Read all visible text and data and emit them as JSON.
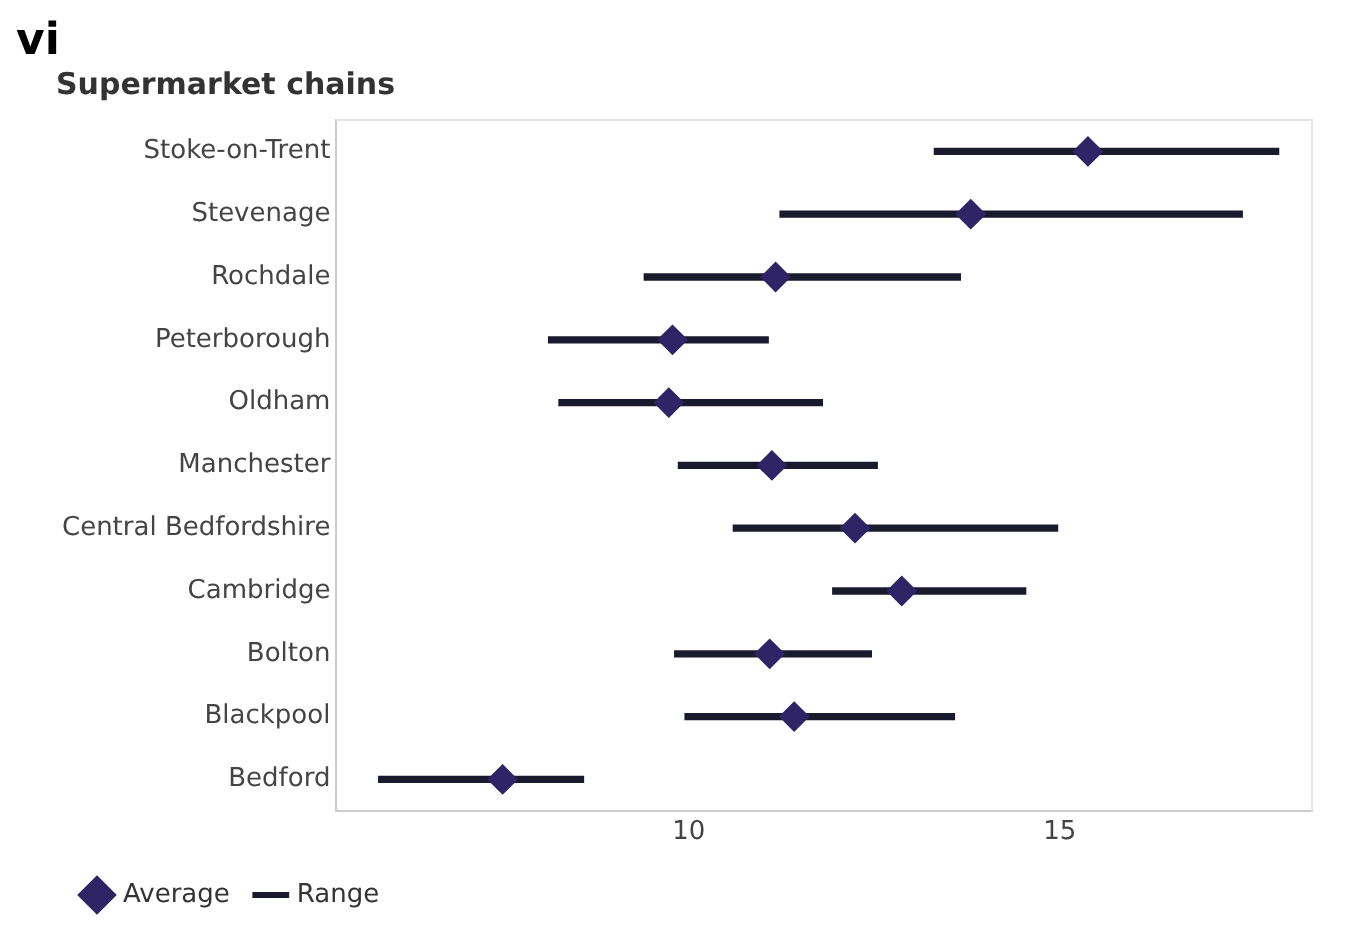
{
  "chart_data": {
    "type": "scatter",
    "orientation": "horizontal",
    "title": "Supermarket chains",
    "annotations": [
      "vi"
    ],
    "categories": [
      "Stoke-on-Trent",
      "Stevenage",
      "Rochdale",
      "Peterborough",
      "Oldham",
      "Manchester",
      "Central Bedfordshire",
      "Cambridge",
      "Bolton",
      "Blackpool",
      "Bedford"
    ],
    "series": [
      {
        "name": "Average",
        "color": "#2e2466",
        "marker": "diamond",
        "values": [
          15.38,
          13.8,
          11.17,
          9.78,
          9.73,
          11.12,
          12.24,
          12.87,
          11.09,
          11.42,
          7.49
        ]
      },
      {
        "name": "Range",
        "type": "bar",
        "color": "#1a1a2e",
        "base": [
          13.31,
          11.23,
          9.4,
          8.11,
          8.25,
          9.86,
          10.6,
          11.94,
          9.81,
          9.95,
          5.82
        ],
        "values": [
          4.64,
          6.23,
          4.26,
          2.96,
          3.55,
          2.68,
          4.37,
          2.6,
          2.65,
          3.63,
          2.76
        ]
      }
    ],
    "xlim": [
      5.25,
      18.4
    ],
    "xticks": [
      10,
      15
    ],
    "grid": false,
    "legend": "bottom left"
  }
}
